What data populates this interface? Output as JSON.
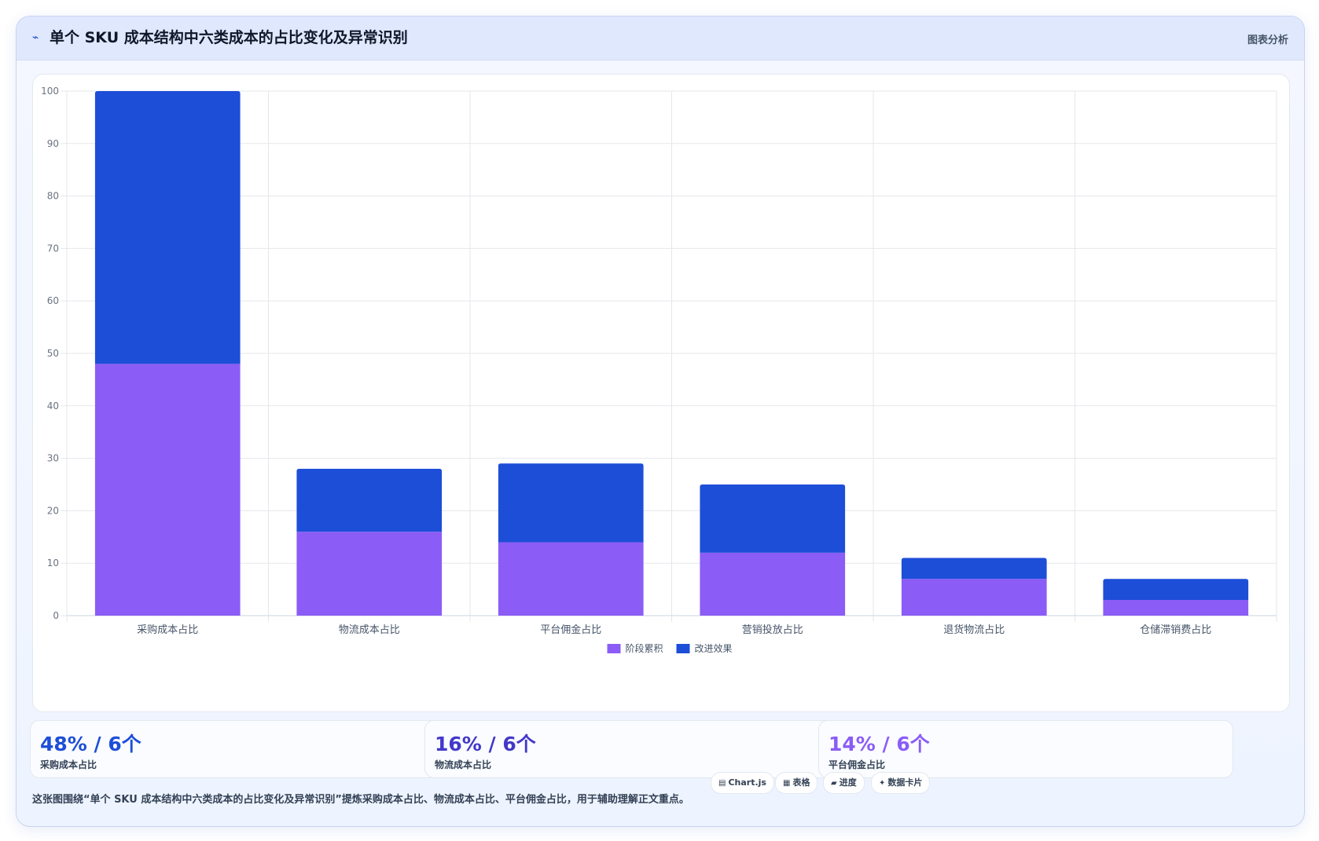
{
  "header": {
    "icon": "trend-line-icon",
    "title": "单个 SKU 成本结构中六类成本的占比变化及异常识别",
    "right_label": "图表分析"
  },
  "chart_data": {
    "type": "bar",
    "stacked": true,
    "categories": [
      "采购成本占比",
      "物流成本占比",
      "平台佣金占比",
      "营销投放占比",
      "退货物流占比",
      "仓储滞销费占比"
    ],
    "series": [
      {
        "name": "阶段累积",
        "values": [
          48,
          16,
          14,
          12,
          7,
          3
        ],
        "color": "#8b5cf6"
      },
      {
        "name": "改进效果",
        "values": [
          52,
          12,
          15,
          13,
          4,
          4
        ],
        "color": "#1d4ed8"
      }
    ],
    "ylim": [
      0,
      100
    ],
    "yticks": [
      0,
      10,
      20,
      30,
      40,
      50,
      60,
      70,
      80,
      90,
      100
    ],
    "grid": true,
    "legend": "bottom"
  },
  "stats": [
    {
      "value": "48% / 6个",
      "label": "采购成本占比",
      "color": "#1d4ed8"
    },
    {
      "value": "16% / 6个",
      "label": "物流成本占比",
      "color": "#4338ca"
    },
    {
      "value": "14% / 6个",
      "label": "平台佣金占比",
      "color": "#8b5cf6"
    }
  ],
  "caption": "这张图围绕“单个 SKU 成本结构中六类成本的占比变化及异常识别”提炼采购成本占比、物流成本占比、平台佣金占比，用于辅助理解正文重点。",
  "badges": [
    {
      "icon": "chart-icon",
      "glyph": "▤",
      "label": "Chart.js"
    },
    {
      "icon": "table-icon",
      "glyph": "▦",
      "label": "表格"
    },
    {
      "icon": "progress-icon",
      "glyph": "▰",
      "label": "进度"
    },
    {
      "icon": "sparkle-icon",
      "glyph": "✦",
      "label": "数据卡片"
    }
  ]
}
